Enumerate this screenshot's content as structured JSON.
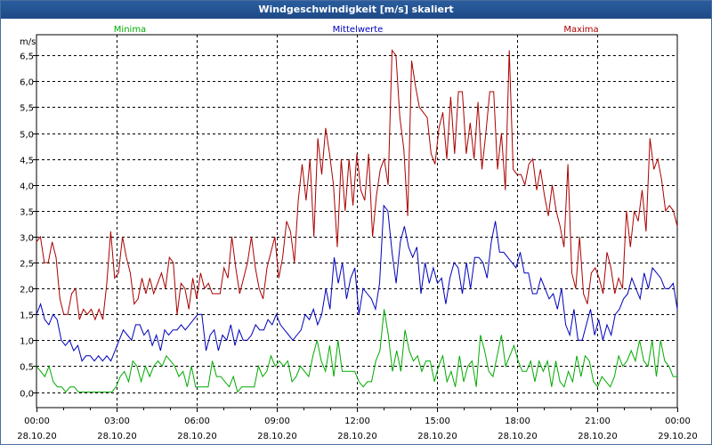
{
  "window": {
    "title": "Windgeschwindigkeit [m/s] skaliert"
  },
  "chart_data": {
    "type": "line",
    "ylabel": "m/s",
    "ylim": [
      -0.3,
      6.9
    ],
    "yticks": [
      "6,5",
      "6,0",
      "5,5",
      "5,0",
      "4,5",
      "4,0",
      "3,5",
      "3,0",
      "2,5",
      "2,0",
      "1,5",
      "1,0",
      "0,5",
      "0,0"
    ],
    "ytick_values": [
      6.5,
      6.0,
      5.5,
      5.0,
      4.5,
      4.0,
      3.5,
      3.0,
      2.5,
      2.0,
      1.5,
      1.0,
      0.5,
      0.0
    ],
    "xlim": [
      0,
      24
    ],
    "xtick_hours": [
      0,
      3,
      6,
      9,
      12,
      15,
      18,
      21,
      24
    ],
    "xticks_time": [
      "00:00",
      "03:00",
      "06:00",
      "09:00",
      "12:00",
      "15:00",
      "18:00",
      "21:00",
      "00:00"
    ],
    "xticks_date": [
      "28.10.20",
      "28.10.20",
      "28.10.20",
      "28.10.20",
      "28.10.20",
      "28.10.20",
      "28.10.20",
      "28.10.20",
      "29.10.20"
    ],
    "grid": true,
    "legend": [
      "Minima",
      "Mittelwerte",
      "Maxima"
    ],
    "series": [
      {
        "name": "Minima",
        "color": "#00aa00",
        "values": [
          0.5,
          0.4,
          0.3,
          0.5,
          0.2,
          0.1,
          0.1,
          0.0,
          0.1,
          0.1,
          0.0,
          0.0,
          0.0,
          0.0,
          0.0,
          0.0,
          0.0,
          0.0,
          0.0,
          0.1,
          0.3,
          0.4,
          0.2,
          0.6,
          0.5,
          0.2,
          0.5,
          0.3,
          0.5,
          0.6,
          0.5,
          0.7,
          0.6,
          0.5,
          0.3,
          0.4,
          0.1,
          0.5,
          0.1,
          0.1,
          0.1,
          0.1,
          0.6,
          0.3,
          0.3,
          0.2,
          0.1,
          0.3,
          0.0,
          0.1,
          0.1,
          0.1,
          0.1,
          0.5,
          0.3,
          0.4,
          0.7,
          0.5,
          0.6,
          0.5,
          0.6,
          0.2,
          0.3,
          0.5,
          0.4,
          0.3,
          0.7,
          1.0,
          0.6,
          0.4,
          0.9,
          0.3,
          1.0,
          0.4,
          0.4,
          0.4,
          0.4,
          0.2,
          0.1,
          0.2,
          0.2,
          0.6,
          0.8,
          1.6,
          1.1,
          0.4,
          0.8,
          0.4,
          1.2,
          0.8,
          0.6,
          0.7,
          0.4,
          0.6,
          0.6,
          0.2,
          0.5,
          0.7,
          0.2,
          0.4,
          0.1,
          0.7,
          0.2,
          0.5,
          0.6,
          0.1,
          1.1,
          0.8,
          0.4,
          0.3,
          0.7,
          1.1,
          0.5,
          0.7,
          0.9,
          0.6,
          0.4,
          0.4,
          0.6,
          0.2,
          0.6,
          0.4,
          0.6,
          0.1,
          0.6,
          0.2,
          0.1,
          0.4,
          0.2,
          0.7,
          0.3,
          0.7,
          0.6,
          0.2,
          0.1,
          0.3,
          0.2,
          0.1,
          0.3,
          0.7,
          0.5,
          0.6,
          0.8,
          0.6,
          1.0,
          0.6,
          0.5,
          1.0,
          0.3,
          1.0,
          0.6,
          0.5,
          0.3,
          0.3
        ]
      },
      {
        "name": "Mittelwerte",
        "color": "#0000bb",
        "values": [
          1.5,
          1.7,
          1.4,
          1.3,
          1.5,
          1.4,
          1.0,
          0.9,
          1.0,
          0.8,
          0.9,
          0.6,
          0.7,
          0.7,
          0.6,
          0.7,
          0.6,
          0.7,
          0.6,
          0.8,
          1.0,
          1.2,
          1.1,
          1.0,
          1.3,
          1.3,
          1.1,
          1.2,
          0.9,
          1.1,
          0.8,
          1.2,
          1.1,
          1.2,
          1.2,
          1.3,
          1.2,
          1.3,
          1.4,
          1.5,
          1.5,
          0.8,
          1.1,
          1.2,
          0.8,
          1.1,
          1.0,
          1.3,
          0.9,
          1.2,
          1.0,
          1.0,
          1.1,
          1.3,
          1.2,
          1.2,
          1.4,
          1.3,
          1.5,
          1.3,
          1.2,
          1.1,
          1.0,
          1.1,
          1.2,
          1.5,
          1.4,
          1.6,
          1.3,
          1.5,
          2.0,
          1.6,
          2.6,
          2.1,
          2.5,
          1.8,
          2.2,
          2.4,
          1.5,
          2.0,
          1.9,
          1.8,
          1.6,
          2.1,
          3.6,
          3.5,
          2.7,
          2.1,
          2.9,
          3.2,
          2.8,
          2.6,
          2.8,
          1.9,
          2.5,
          2.1,
          2.4,
          2.1,
          2.2,
          1.7,
          2.2,
          2.5,
          2.4,
          1.9,
          2.5,
          2.0,
          2.6,
          2.6,
          2.5,
          2.2,
          2.9,
          3.3,
          2.7,
          2.7,
          2.6,
          2.5,
          2.4,
          2.7,
          2.3,
          2.3,
          1.9,
          1.9,
          2.2,
          2.0,
          1.8,
          1.9,
          1.6,
          2.0,
          1.3,
          1.1,
          1.6,
          1.0,
          1.0,
          1.3,
          1.6,
          1.1,
          1.4,
          1.0,
          1.3,
          1.1,
          1.5,
          1.6,
          1.8,
          1.9,
          2.2,
          2.0,
          1.8,
          2.3,
          2.0,
          2.4,
          2.3,
          2.2,
          2.0,
          2.0,
          2.1,
          1.6
        ]
      },
      {
        "name": "Maxima",
        "color": "#aa0000",
        "values": [
          2.9,
          3.0,
          2.5,
          2.5,
          2.9,
          2.6,
          1.8,
          1.5,
          1.5,
          1.9,
          2.0,
          1.4,
          1.6,
          1.5,
          1.6,
          1.4,
          1.6,
          1.4,
          2.1,
          3.1,
          2.2,
          2.3,
          3.0,
          2.6,
          2.3,
          1.7,
          1.8,
          2.2,
          1.9,
          2.2,
          1.9,
          2.1,
          2.3,
          2.0,
          2.6,
          2.5,
          1.5,
          2.1,
          2.0,
          1.6,
          2.2,
          1.8,
          2.3,
          2.0,
          2.1,
          1.9,
          1.9,
          1.9,
          2.4,
          2.2,
          3.0,
          2.4,
          1.9,
          2.2,
          2.5,
          3.0,
          2.4,
          2.0,
          1.8,
          2.4,
          2.7,
          3.0,
          2.2,
          2.6,
          3.3,
          3.1,
          2.5,
          3.7,
          4.4,
          3.7,
          4.5,
          3.0,
          4.9,
          4.2,
          5.1,
          4.6,
          4.0,
          2.8,
          4.5,
          3.5,
          4.5,
          3.6,
          4.6,
          3.9,
          3.7,
          4.6,
          3.0,
          3.8,
          4.3,
          4.5,
          4.0,
          6.6,
          6.5,
          5.3,
          4.7,
          3.4,
          6.4,
          5.9,
          5.5,
          5.4,
          5.3,
          4.6,
          4.4,
          5.1,
          5.4,
          4.5,
          5.7,
          4.6,
          5.8,
          5.8,
          4.6,
          5.2,
          4.5,
          5.6,
          4.3,
          5.0,
          5.8,
          5.8,
          4.3,
          5.0,
          3.9,
          6.6,
          4.3,
          4.2,
          4.2,
          4.0,
          4.4,
          4.5,
          3.9,
          4.3,
          3.8,
          3.4,
          4.0,
          3.5,
          3.2,
          2.8,
          4.4,
          2.3,
          2.0,
          3.0,
          1.9,
          1.7,
          2.3,
          2.4,
          2.2,
          1.9,
          2.7,
          2.4,
          1.9,
          2.2,
          2.0,
          3.5,
          2.8,
          3.5,
          3.3,
          3.9,
          3.1,
          4.9,
          4.3,
          4.5,
          4.1,
          3.5,
          3.6,
          3.5,
          3.2
        ]
      }
    ]
  }
}
